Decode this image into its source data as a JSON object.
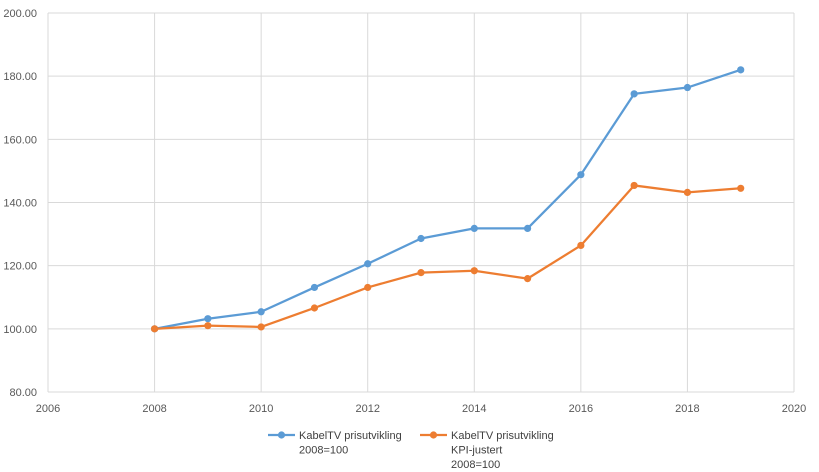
{
  "chart_data": {
    "type": "line",
    "title": "",
    "xlabel": "",
    "ylabel": "",
    "xlim": [
      2006,
      2020
    ],
    "ylim": [
      80,
      200
    ],
    "x_ticks": [
      "2006",
      "2008",
      "2010",
      "2012",
      "2014",
      "2016",
      "2018",
      "2020"
    ],
    "y_ticks": [
      "80.00",
      "100.00",
      "120.00",
      "140.00",
      "160.00",
      "180.00",
      "200.00"
    ],
    "grid": true,
    "legend_position": "bottom",
    "series": [
      {
        "name_lines": [
          "KabelTV prisutvikling",
          "2008=100"
        ],
        "color": "#5B9BD5",
        "x": [
          2008,
          2009,
          2010,
          2011,
          2012,
          2013,
          2014,
          2015,
          2016,
          2017,
          2018,
          2019
        ],
        "values": [
          100.0,
          103.2,
          105.4,
          113.1,
          120.6,
          128.6,
          131.8,
          131.8,
          148.8,
          174.4,
          176.4,
          182.0
        ]
      },
      {
        "name_lines": [
          "KabelTV prisutvikling",
          "KPI-justert",
          "2008=100"
        ],
        "color": "#ED7D31",
        "x": [
          2008,
          2009,
          2010,
          2011,
          2012,
          2013,
          2014,
          2015,
          2016,
          2017,
          2018,
          2019
        ],
        "values": [
          100.0,
          101.0,
          100.6,
          106.6,
          113.1,
          117.8,
          118.4,
          115.9,
          126.4,
          145.4,
          143.2,
          144.5
        ]
      }
    ]
  }
}
